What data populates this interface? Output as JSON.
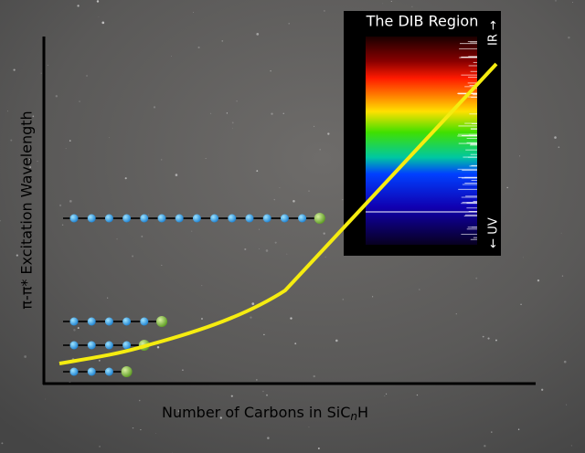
{
  "axes": {
    "y_label": "π-π* Excitation Wavelength",
    "x_label": {
      "prefix": "Number of Carbons in SiC",
      "subscript": "n",
      "suffix": "H"
    }
  },
  "spectrum": {
    "title": "The DIB Region",
    "top_label": "IR →",
    "bottom_label": "← UV"
  }
}
